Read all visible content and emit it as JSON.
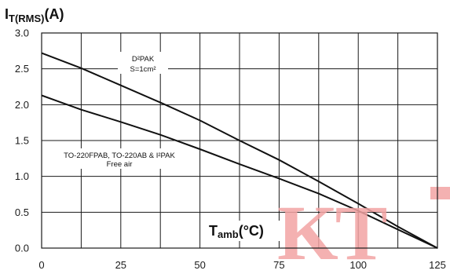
{
  "chart_data": {
    "type": "line",
    "title": "",
    "ylabel_main": "I",
    "ylabel_sub": "T(RMS)",
    "ylabel_unit": "(A)",
    "xlabel_main": "T",
    "xlabel_sub": "amb",
    "xlabel_unit": "(°C)",
    "xlim": [
      0,
      125
    ],
    "ylim": [
      0.0,
      3.0
    ],
    "x_ticks": [
      0,
      25,
      50,
      75,
      100,
      125
    ],
    "x_tick_labels": [
      "0",
      "25",
      "50",
      "75",
      "100",
      "125"
    ],
    "y_ticks": [
      0.0,
      0.5,
      1.0,
      1.5,
      2.0,
      2.5,
      3.0
    ],
    "y_tick_labels": [
      "0.0",
      "0.5",
      "1.0",
      "1.5",
      "2.0",
      "2.5",
      "3.0"
    ],
    "x_minor_grid_step": 12.5,
    "grid": true,
    "series": [
      {
        "x": [
          0,
          12.5,
          25,
          37.5,
          50,
          62.5,
          75,
          87.5,
          100,
          112.5,
          125
        ],
        "y": [
          2.72,
          2.51,
          2.27,
          2.03,
          1.78,
          1.5,
          1.23,
          0.93,
          0.62,
          0.3,
          0.0
        ]
      },
      {
        "x": [
          0,
          12.5,
          25,
          37.5,
          50,
          62.5,
          75,
          87.5,
          100,
          112.5,
          125
        ],
        "y": [
          2.13,
          1.93,
          1.76,
          1.58,
          1.38,
          1.17,
          0.97,
          0.76,
          0.52,
          0.26,
          0.0
        ]
      }
    ],
    "annotations": [
      {
        "lines": [
          "D²PAK",
          "S=1cm²"
        ]
      },
      {
        "lines": [
          "TO-220FPAB, TO-220AB & I²PAK",
          "Free air"
        ]
      }
    ]
  },
  "watermark": {
    "text": "KT",
    "color": "#f2a3a3"
  }
}
